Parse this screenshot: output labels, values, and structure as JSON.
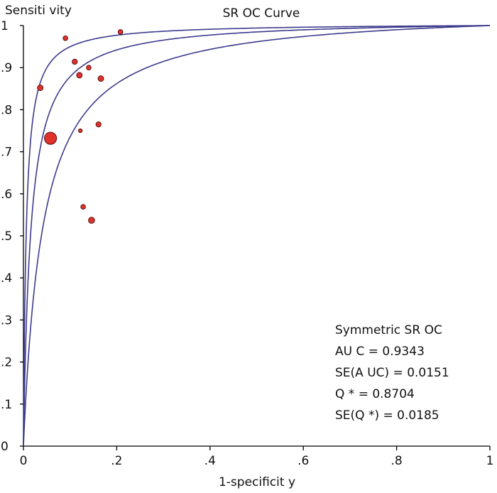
{
  "chart_data": {
    "type": "scatter",
    "title": "SR OC Curve",
    "xlabel": "1-specificit y",
    "ylabel": "Sensiti vity",
    "xlim": [
      0,
      1
    ],
    "ylim": [
      0,
      1
    ],
    "grid": false,
    "x_ticks": [
      {
        "value": 0,
        "label": "0"
      },
      {
        "value": 0.2,
        "label": ".2"
      },
      {
        "value": 0.4,
        "label": ".4"
      },
      {
        "value": 0.6,
        "label": ".6"
      },
      {
        "value": 0.8,
        "label": ".8"
      },
      {
        "value": 1,
        "label": "1"
      }
    ],
    "y_ticks": [
      {
        "value": 0,
        "label": "0"
      },
      {
        "value": 0.1,
        "label": ".1"
      },
      {
        "value": 0.2,
        "label": ".2"
      },
      {
        "value": 0.3,
        "label": ".3"
      },
      {
        "value": 0.4,
        "label": ".4"
      },
      {
        "value": 0.5,
        "label": ".5"
      },
      {
        "value": 0.6,
        "label": ".6"
      },
      {
        "value": 0.7,
        "label": ".7"
      },
      {
        "value": 0.8,
        "label": ".8"
      },
      {
        "value": 0.9,
        "label": ".9"
      },
      {
        "value": 1,
        "label": "1"
      }
    ],
    "points": [
      {
        "x": 0.09,
        "y": 0.97,
        "size": 1
      },
      {
        "x": 0.208,
        "y": 0.985,
        "size": 1
      },
      {
        "x": 0.11,
        "y": 0.914,
        "size": 1.1
      },
      {
        "x": 0.14,
        "y": 0.9,
        "size": 1
      },
      {
        "x": 0.12,
        "y": 0.882,
        "size": 1.2
      },
      {
        "x": 0.166,
        "y": 0.874,
        "size": 1.2
      },
      {
        "x": 0.036,
        "y": 0.852,
        "size": 1.2
      },
      {
        "x": 0.161,
        "y": 0.765,
        "size": 1.1
      },
      {
        "x": 0.058,
        "y": 0.732,
        "size": 2.6
      },
      {
        "x": 0.122,
        "y": 0.75,
        "size": 0.8
      },
      {
        "x": 0.128,
        "y": 0.569,
        "size": 1
      },
      {
        "x": 0.146,
        "y": 0.537,
        "size": 1.3
      }
    ],
    "curves": [
      {
        "role": "upper-bound",
        "dor": 170
      },
      {
        "role": "sroc",
        "dor": 65
      },
      {
        "role": "lower-bound",
        "dor": 25
      }
    ],
    "curve_color": "#3d3a8c",
    "point_fill": "#e0322b",
    "point_stroke": "#5a1010"
  },
  "stats": {
    "heading": "Symmetric SR OC",
    "auc": "AU C = 0.9343",
    "se_auc": "SE(A UC)  = 0.0151",
    "q_star": "Q * = 0.8704",
    "se_q_star": "SE(Q *) = 0.0185"
  }
}
